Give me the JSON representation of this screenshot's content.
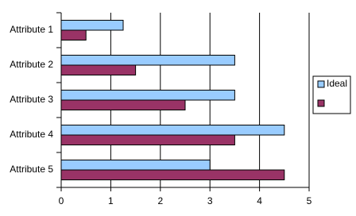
{
  "chart_data": {
    "type": "bar",
    "orientation": "horizontal",
    "categories": [
      "Attribute 1",
      "Attribute 2",
      "Attribute 3",
      "Attribute 4",
      "Attribute 5"
    ],
    "series": [
      {
        "name": "Ideal",
        "color": "#99ccff",
        "values": [
          1.25,
          3.5,
          3.5,
          4.5,
          3
        ]
      },
      {
        "color": "#993366",
        "values": [
          0.5,
          1.5,
          2.5,
          3.5,
          4.5
        ]
      }
    ],
    "xlim": [
      0,
      5
    ],
    "xticks": [
      0,
      1,
      2,
      3,
      4,
      5
    ],
    "grid": true,
    "legend": "right"
  }
}
